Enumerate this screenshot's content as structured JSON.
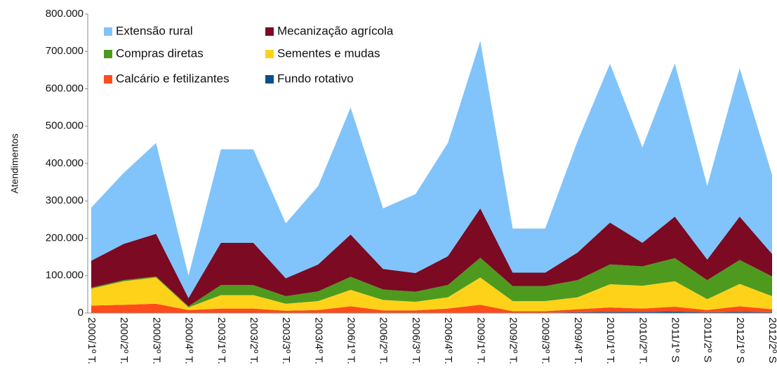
{
  "chart_data": {
    "type": "stacked_area",
    "y_label": "Atendimentos",
    "categories": [
      "2000/1º T.",
      "2000/2º T.",
      "2000/3º T.",
      "2000/4º T.",
      "2003/1º T.",
      "2003/2º T.",
      "2003/3º T.",
      "2003/4º T.",
      "2006/1º T.",
      "2006/2º T.",
      "2006/3º T.",
      "2006/4º T.",
      "2009/1º T.",
      "2009/2º T.",
      "2009/3º T.",
      "2009/4º T.",
      "2010/1º T.",
      "2010/2º T.",
      "2011/1º S",
      "2011/2º S",
      "2012/1º S",
      "2012/2º S"
    ],
    "series": [
      {
        "name": "Fundo rotativo",
        "color": "#0a4e8a",
        "values": [
          1000,
          1000,
          1000,
          0,
          1000,
          1000,
          1000,
          1000,
          1000,
          1000,
          1000,
          1000,
          1000,
          1000,
          1000,
          2000,
          3000,
          3000,
          4000,
          2000,
          3000,
          2000
        ]
      },
      {
        "name": "Calcário e fetilizantes",
        "color": "#ff4c1a",
        "values": [
          19000,
          21000,
          24000,
          8000,
          11000,
          11000,
          5000,
          7000,
          17000,
          6000,
          6000,
          11000,
          21000,
          4000,
          4000,
          8000,
          12000,
          9000,
          13000,
          6000,
          15000,
          8000
        ]
      },
      {
        "name": "Sementes e mudas",
        "color": "#ffd21a",
        "values": [
          45000,
          63000,
          70000,
          7000,
          36000,
          36000,
          19000,
          24000,
          44000,
          28000,
          23000,
          30000,
          73000,
          27000,
          27000,
          32000,
          62000,
          61000,
          68000,
          29000,
          60000,
          35000
        ]
      },
      {
        "name": "Compras diretas",
        "color": "#4e9a1e",
        "values": [
          3000,
          3000,
          3000,
          3000,
          27000,
          27000,
          20000,
          26000,
          35000,
          28000,
          27000,
          33000,
          53000,
          40000,
          40000,
          46000,
          53000,
          52000,
          62000,
          51000,
          64000,
          53000
        ]
      },
      {
        "name": "Mecanização agrícola",
        "color": "#7b0a22",
        "values": [
          72000,
          97000,
          114000,
          22000,
          113000,
          113000,
          48000,
          72000,
          113000,
          55000,
          50000,
          77000,
          132000,
          36000,
          36000,
          74000,
          112000,
          63000,
          111000,
          55000,
          116000,
          60000
        ]
      },
      {
        "name": "Extensão rural",
        "color": "#80c4fb",
        "values": [
          142000,
          190000,
          243000,
          60000,
          250000,
          250000,
          147000,
          210000,
          340000,
          162000,
          211000,
          303000,
          448000,
          118000,
          118000,
          298000,
          425000,
          255000,
          410000,
          197000,
          397000,
          212000
        ]
      }
    ],
    "ylim": [
      0,
      800000
    ],
    "yticks": [
      0,
      {
        "value": 100000,
        "label": "100.000"
      },
      {
        "value": 200000,
        "label": "200.000"
      },
      {
        "value": 300000,
        "label": "300.000"
      },
      {
        "value": 400000,
        "label": "400.000"
      },
      {
        "value": 500000,
        "label": "500.000"
      },
      {
        "value": 600000,
        "label": "600.000"
      },
      {
        "value": 700000,
        "label": "700.000"
      },
      {
        "value": 800000,
        "label": "800.000"
      }
    ],
    "legend": "upper-left"
  }
}
